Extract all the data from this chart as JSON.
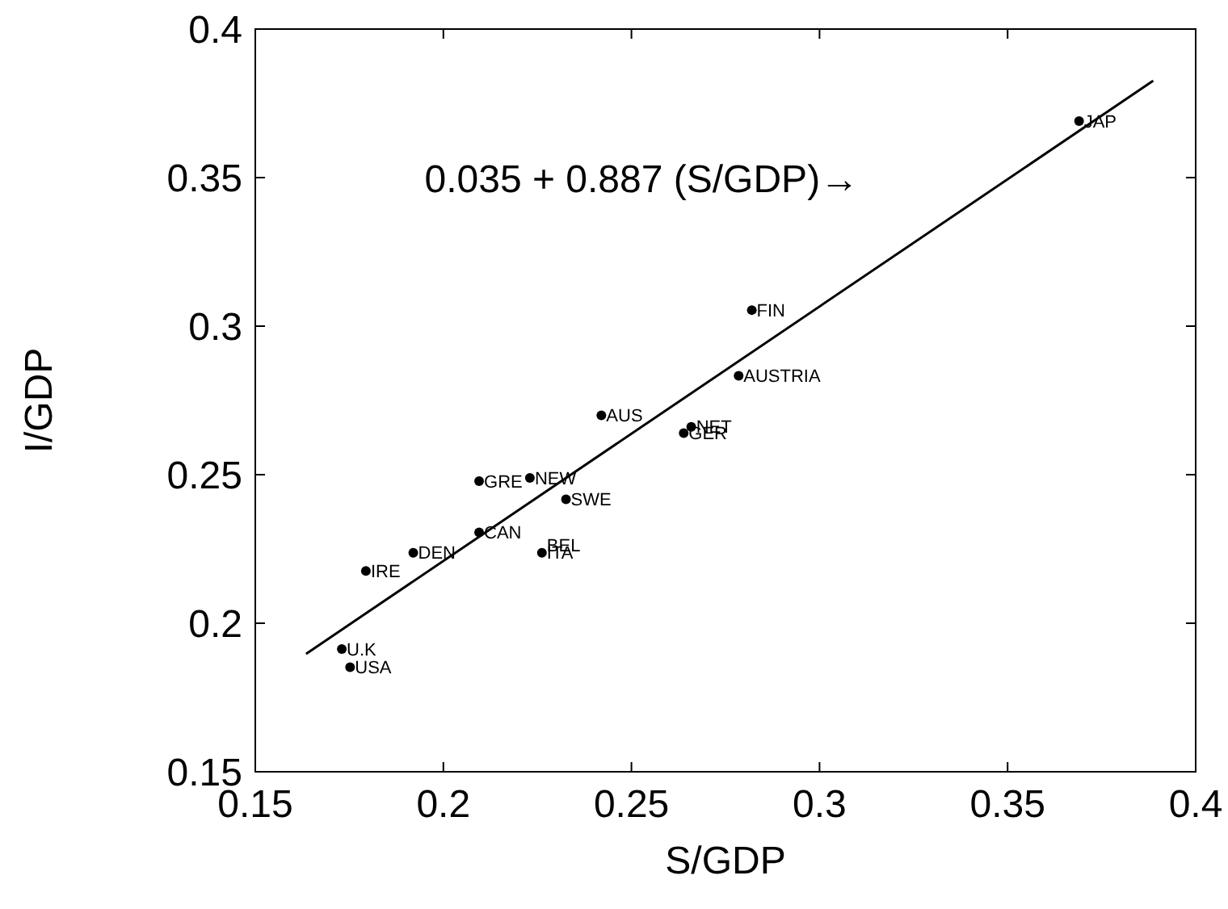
{
  "chart_data": {
    "type": "scatter",
    "xlabel": "S/GDP",
    "ylabel": "I/GDP",
    "xlim": [
      0.15,
      0.4
    ],
    "ylim": [
      0.15,
      0.4
    ],
    "xticks": [
      0.15,
      0.2,
      0.25,
      0.3,
      0.35,
      0.4
    ],
    "yticks": [
      0.15,
      0.2,
      0.25,
      0.3,
      0.35,
      0.4
    ],
    "grid": false,
    "marker": "circle",
    "series": [
      {
        "color": "#000000",
        "x": [
          0.369,
          0.282,
          0.2785,
          0.242,
          0.2659,
          0.2639,
          0.223,
          0.2095,
          0.2326,
          0.2095,
          0.192,
          0.2262,
          0.1794,
          0.173,
          0.1752
        ],
        "values": [
          0.369,
          0.3054,
          0.2833,
          0.27,
          0.2661,
          0.264,
          0.2489,
          0.2478,
          0.2417,
          0.2306,
          0.2237,
          0.2237,
          0.2176,
          0.1913,
          0.1852
        ]
      },
      {
        "type": "line",
        "color": "#000000",
        "line_style": "solid",
        "marker": "none",
        "x": [
          0.1635,
          0.3887
        ],
        "values": [
          0.1897,
          0.3826
        ]
      }
    ],
    "annotations": [
      {
        "text": "JAP",
        "x": 0.369,
        "y": 0.369
      },
      {
        "text": "FIN",
        "x": 0.282,
        "y": 0.3054
      },
      {
        "text": "AUSTRIA",
        "x": 0.2785,
        "y": 0.2833
      },
      {
        "text": "AUS",
        "x": 0.242,
        "y": 0.27
      },
      {
        "text": "NET",
        "x": 0.2659,
        "y": 0.2661
      },
      {
        "text": "GER",
        "x": 0.2639,
        "y": 0.264
      },
      {
        "text": "NEW",
        "x": 0.223,
        "y": 0.2489
      },
      {
        "text": "GRE",
        "x": 0.2095,
        "y": 0.2478
      },
      {
        "text": "SWE",
        "x": 0.2326,
        "y": 0.2417
      },
      {
        "text": "CAN",
        "x": 0.2095,
        "y": 0.2306
      },
      {
        "text": "DEN",
        "x": 0.192,
        "y": 0.2237
      },
      {
        "text": "BEL",
        "x": 0.2262,
        "y": 0.2262
      },
      {
        "text": "ITA",
        "x": 0.2262,
        "y": 0.2237
      },
      {
        "text": "IRE",
        "x": 0.1794,
        "y": 0.2176
      },
      {
        "text": "U.K",
        "x": 0.173,
        "y": 0.1913
      },
      {
        "text": "USA",
        "x": 0.1752,
        "y": 0.1852
      },
      "0.035 + 0.887 (S/GDP)→"
    ]
  }
}
